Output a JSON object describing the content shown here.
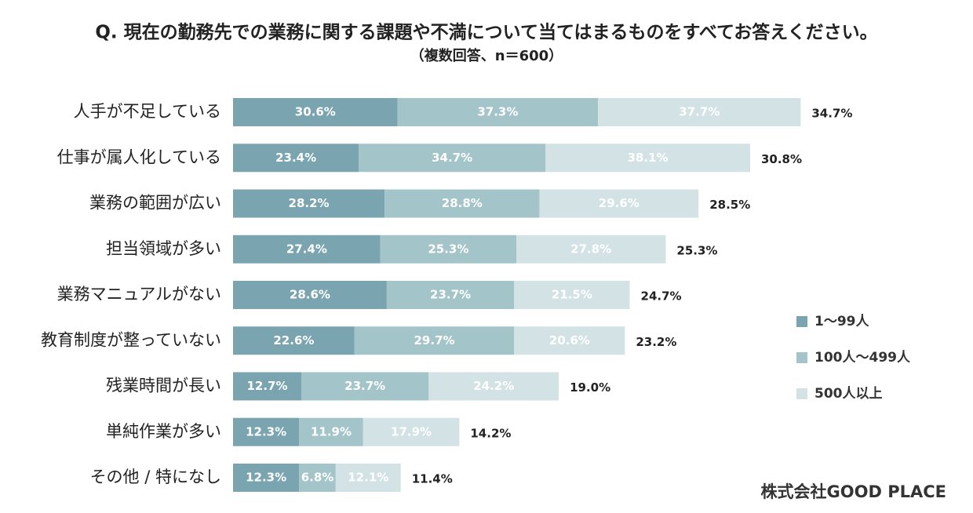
{
  "chart_data": {
    "type": "stacked_barh",
    "title": "Q. 現在の勤務先での業務に関する課題や不満について当てはまるものをすべてお答えください。",
    "subtitle": "（複数回答、n＝600）",
    "categories": [
      "人手が不足している",
      "仕事が属人化している",
      "業務の範囲が広い",
      "担当領域が多い",
      "業務マニュアルがない",
      "教育制度が整っていない",
      "残業時間が長い",
      "単純作業が多い",
      "その他 / 特になし"
    ],
    "series": [
      {
        "name": "1〜99人",
        "color": "#7aa5b0",
        "values": [
          30.6,
          23.4,
          28.2,
          27.4,
          28.6,
          22.6,
          12.7,
          12.3,
          12.3
        ],
        "value_labels": [
          "30.6%",
          "23.4%",
          "28.2%",
          "27.4%",
          "28.6%",
          "22.6%",
          "12.7%",
          "12.3%",
          "12.3%"
        ]
      },
      {
        "name": "100人〜499人",
        "color": "#a3c4c9",
        "values": [
          37.3,
          34.7,
          28.8,
          25.3,
          23.7,
          29.7,
          23.7,
          11.9,
          6.8
        ],
        "value_labels": [
          "37.3%",
          "34.7%",
          "28.8%",
          "25.3%",
          "23.7%",
          "29.7%",
          "23.7%",
          "11.9%",
          "6.8%"
        ]
      },
      {
        "name": "500人以上",
        "color": "#d3e2e5",
        "values": [
          37.7,
          38.1,
          29.6,
          27.8,
          21.5,
          20.6,
          24.2,
          17.9,
          12.1
        ],
        "value_labels": [
          "37.7%",
          "38.1%",
          "29.6%",
          "27.8%",
          "21.5%",
          "20.6%",
          "24.2%",
          "17.9%",
          "12.1%"
        ]
      }
    ],
    "totals": {
      "values": [
        34.7,
        30.8,
        28.5,
        25.3,
        24.7,
        23.2,
        19.0,
        14.2,
        11.4
      ],
      "value_labels": [
        "34.7%",
        "30.8%",
        "28.5%",
        "25.3%",
        "24.7%",
        "23.2%",
        "19.0%",
        "14.2%",
        "11.4%"
      ]
    },
    "logo": "株式会社GOOD PLACE"
  }
}
